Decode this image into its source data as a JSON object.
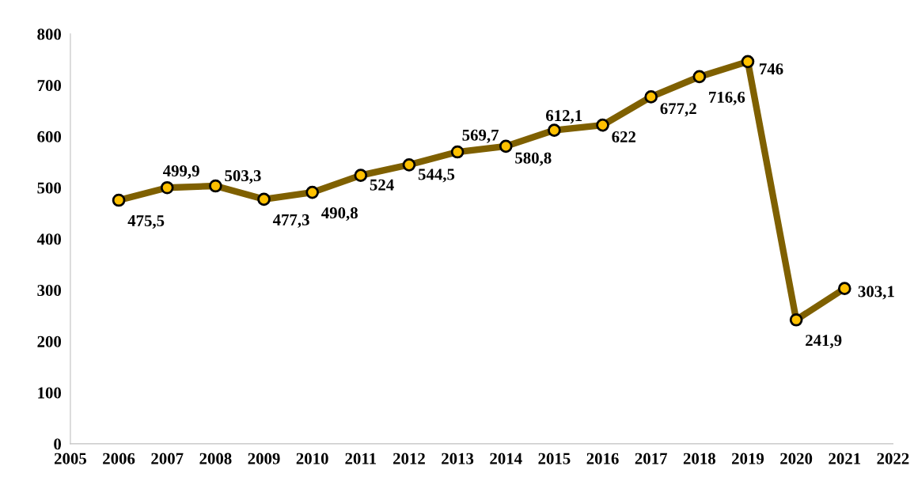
{
  "chart_data": {
    "type": "line",
    "x": [
      2006,
      2007,
      2008,
      2009,
      2010,
      2011,
      2012,
      2013,
      2014,
      2015,
      2016,
      2017,
      2018,
      2019,
      2020,
      2021
    ],
    "series": [
      {
        "color": "#7f6000",
        "values": [
          475.5,
          499.9,
          503.3,
          477.3,
          490.8,
          524,
          544.5,
          569.7,
          580.8,
          612.1,
          622,
          677.2,
          716.6,
          746,
          241.9,
          303.1
        ],
        "value_labels": [
          "475,5",
          "499,9",
          "503,3",
          "477,3",
          "490,8",
          "524",
          "544,5",
          "569,7",
          "580,8",
          "612,1",
          "622",
          "677,2",
          "716,6",
          "746",
          "241,9",
          "303,1"
        ]
      }
    ],
    "xlim": [
      2005,
      2022
    ],
    "xticks": [
      2005,
      2006,
      2007,
      2008,
      2009,
      2010,
      2011,
      2012,
      2013,
      2014,
      2015,
      2016,
      2017,
      2018,
      2019,
      2020,
      2021,
      2022
    ],
    "ylim": [
      0,
      800
    ],
    "yticks": [
      0,
      100,
      200,
      300,
      400,
      500,
      600,
      700,
      800
    ],
    "grid": false,
    "marker": "circle",
    "line_style": "solid"
  }
}
